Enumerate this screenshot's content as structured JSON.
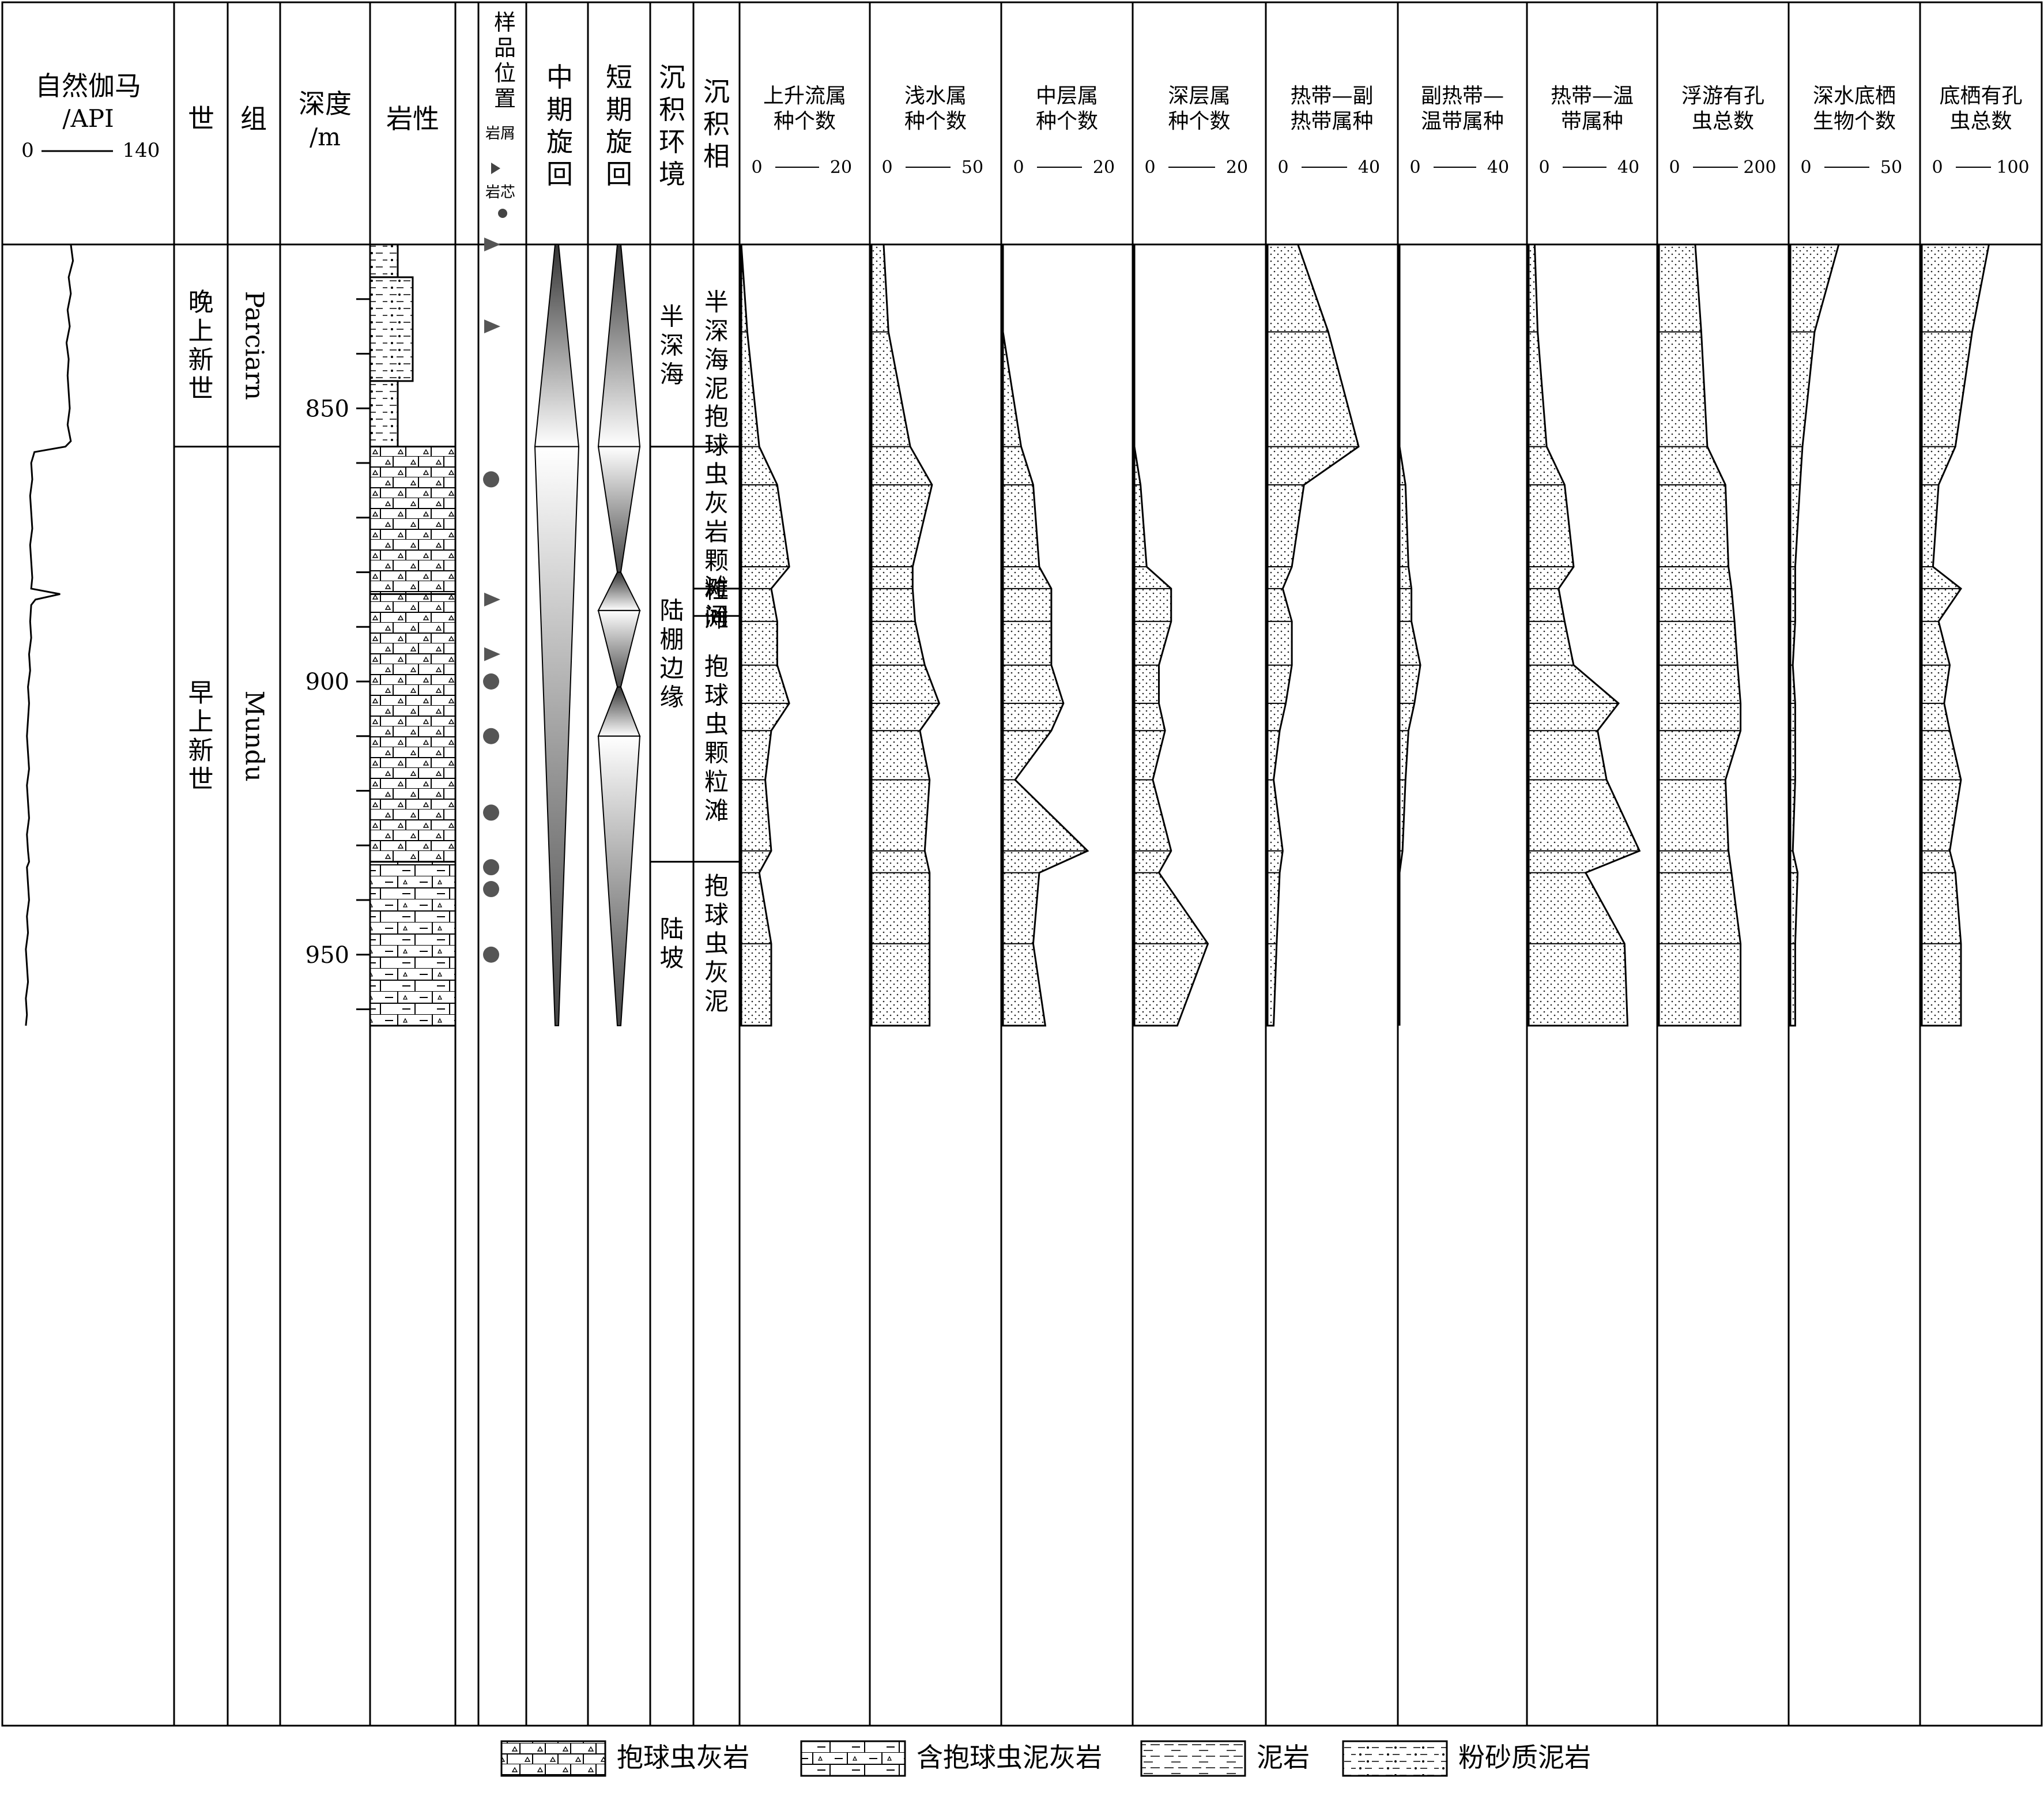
{
  "header": {
    "gamma_title": [
      "自然伽马",
      "/API"
    ],
    "gamma_scale": {
      "min": "0",
      "max": "140"
    },
    "epoch": "世",
    "formation": "组",
    "depth": [
      "深度",
      "/m"
    ],
    "lithology": "岩性",
    "sample": [
      "样",
      "品",
      "位",
      "置"
    ],
    "sample_legend": {
      "cuttings": "岩屑",
      "core": "岩芯"
    },
    "mid_cycle": [
      "中",
      "期",
      "旋",
      "回"
    ],
    "short_cycle": [
      "短",
      "期",
      "旋",
      "回"
    ],
    "environment": [
      "沉",
      "积",
      "环",
      "境"
    ],
    "facies": [
      "沉",
      "积",
      "相"
    ]
  },
  "epochs": [
    {
      "name": [
        "晚",
        "上",
        "新",
        "世"
      ],
      "top": 820,
      "bottom": 857
    },
    {
      "name": [
        "早",
        "上",
        "新",
        "世"
      ],
      "top": 857,
      "bottom": 963
    }
  ],
  "formations": [
    {
      "name": "Parciarn",
      "top": 820,
      "bottom": 857
    },
    {
      "name": "Mundu",
      "top": 857,
      "bottom": 963
    }
  ],
  "environments": [
    {
      "name": [
        "半",
        "深",
        "海"
      ],
      "top": 820,
      "bottom": 857
    },
    {
      "name": [
        "陆",
        "棚",
        "边",
        "缘"
      ],
      "top": 857,
      "bottom": 933
    },
    {
      "name": [
        "陆",
        "坡"
      ],
      "top": 933,
      "bottom": 963
    }
  ],
  "facies": [
    {
      "name": [
        "半",
        "深",
        "海",
        "泥"
      ],
      "top": 820,
      "bottom": 857
    },
    {
      "name": [
        "抱",
        "球",
        "虫",
        "灰",
        "岩",
        "颗",
        "粒",
        "滩"
      ],
      "top": 857,
      "bottom": 883
    },
    {
      "name": [
        "滩",
        "间"
      ],
      "top": 883,
      "bottom": 888
    },
    {
      "name": [
        "抱",
        "球",
        "虫",
        "颗",
        "粒",
        "滩"
      ],
      "top": 888,
      "bottom": 933
    },
    {
      "name": [
        "抱",
        "球",
        "虫",
        "灰",
        "泥"
      ],
      "top": 933,
      "bottom": 963
    }
  ],
  "lithology": [
    {
      "type": "silty",
      "top": 820,
      "bottom": 826
    },
    {
      "type": "silty",
      "top": 826,
      "bottom": 845
    },
    {
      "type": "silty",
      "top": 845,
      "bottom": 857
    },
    {
      "type": "limestone",
      "top": 857,
      "bottom": 884
    },
    {
      "type": "limestone",
      "top": 884,
      "bottom": 933
    },
    {
      "type": "marl",
      "top": 933,
      "bottom": 963
    }
  ],
  "samples": [
    {
      "kind": "cuttings",
      "depth": 820
    },
    {
      "kind": "cuttings",
      "depth": 835
    },
    {
      "kind": "core",
      "depth": 863
    },
    {
      "kind": "cuttings",
      "depth": 885
    },
    {
      "kind": "cuttings",
      "depth": 895
    },
    {
      "kind": "core",
      "depth": 900
    },
    {
      "kind": "core",
      "depth": 910
    },
    {
      "kind": "core",
      "depth": 924
    },
    {
      "kind": "core",
      "depth": 934
    },
    {
      "kind": "core",
      "depth": 938
    },
    {
      "kind": "core",
      "depth": 950
    }
  ],
  "cycles": {
    "mid": [
      [
        820,
        857,
        "down"
      ],
      [
        857,
        963,
        "up"
      ]
    ],
    "short": [
      [
        820,
        857,
        "down"
      ],
      [
        857,
        880,
        "up"
      ],
      [
        880,
        887,
        "down"
      ],
      [
        887,
        901,
        "up"
      ],
      [
        901,
        910,
        "down"
      ],
      [
        910,
        963,
        "up"
      ]
    ]
  },
  "legend": [
    {
      "type": "limestone",
      "label": "抱球虫灰岩"
    },
    {
      "type": "marl",
      "label": "含抱球虫泥灰岩"
    },
    {
      "type": "mudstone",
      "label": "泥岩"
    },
    {
      "type": "silty",
      "label": "粉砂质泥岩"
    }
  ],
  "chart_data": {
    "type": "line",
    "ylabel": "深度/m",
    "ylim": [
      820,
      963
    ],
    "y_ticks": [
      {
        "value": 830,
        "label": ""
      },
      {
        "value": 840,
        "label": ""
      },
      {
        "value": 850,
        "label": "850"
      },
      {
        "value": 860,
        "label": ""
      },
      {
        "value": 870,
        "label": ""
      },
      {
        "value": 880,
        "label": ""
      },
      {
        "value": 890,
        "label": ""
      },
      {
        "value": 900,
        "label": "900"
      },
      {
        "value": 910,
        "label": ""
      },
      {
        "value": 920,
        "label": ""
      },
      {
        "value": 930,
        "label": ""
      },
      {
        "value": 940,
        "label": ""
      },
      {
        "value": 950,
        "label": "950"
      },
      {
        "value": 960,
        "label": ""
      }
    ],
    "gamma_ray": {
      "xlabel": "自然伽马/API",
      "xlim": [
        0,
        140
      ],
      "depth": [
        820,
        823,
        826,
        829,
        832,
        835,
        838,
        841,
        844,
        847,
        850,
        853,
        856,
        857,
        858,
        860,
        863,
        866,
        869,
        872,
        875,
        878,
        881,
        883,
        884,
        885,
        886,
        889,
        892,
        895,
        898,
        901,
        904,
        907,
        910,
        913,
        916,
        919,
        922,
        925,
        928,
        931,
        933,
        934,
        937,
        940,
        943,
        946,
        949,
        952,
        955,
        958,
        961,
        963
      ],
      "value": [
        50,
        52,
        48,
        50,
        47,
        49,
        46,
        48,
        47,
        48,
        49,
        47,
        50,
        45,
        16,
        13,
        14,
        12,
        13,
        14,
        12,
        13,
        14,
        13,
        40,
        17,
        13,
        12,
        13,
        11,
        12,
        10,
        11,
        10,
        9,
        10,
        11,
        9,
        10,
        11,
        9,
        10,
        11,
        9,
        10,
        11,
        9,
        10,
        8,
        9,
        10,
        8,
        9,
        8
      ]
    },
    "boundaries": [
      836,
      857,
      864,
      879,
      883,
      889,
      897,
      904,
      909,
      918,
      931,
      935
    ],
    "categories": [
      820,
      836,
      857,
      864,
      879,
      883,
      889,
      897,
      904,
      909,
      918,
      931,
      935,
      948,
      963
    ],
    "series": [
      {
        "name": "上升流属种个数",
        "xlim": [
          0,
          20
        ],
        "ticks": [
          "0",
          "20"
        ],
        "values": [
          0,
          1,
          3,
          6,
          8,
          5,
          6,
          6,
          8,
          5,
          4,
          5,
          3,
          5,
          5
        ]
      },
      {
        "name": "浅水属种个数",
        "xlim": [
          0,
          50
        ],
        "ticks": [
          "0",
          "50"
        ],
        "values": [
          5,
          7,
          16,
          25,
          17,
          17,
          18,
          22,
          28,
          20,
          24,
          22,
          24,
          24,
          24
        ]
      },
      {
        "name": "中层属种个数",
        "xlim": [
          0,
          20
        ],
        "ticks": [
          "0",
          "20"
        ],
        "values": [
          0,
          0,
          3,
          5,
          6,
          8,
          8,
          8,
          10,
          8,
          2,
          14,
          6,
          5,
          7
        ]
      },
      {
        "name": "深层属种个数",
        "xlim": [
          0,
          20
        ],
        "ticks": [
          "0",
          "20"
        ],
        "values": [
          0,
          0,
          0,
          1,
          2,
          6,
          6,
          4,
          4,
          5,
          3,
          6,
          4,
          12,
          7
        ]
      },
      {
        "name": "热带—副热带属种",
        "xlim": [
          0,
          40
        ],
        "ticks": [
          "0",
          "40"
        ],
        "values": [
          10,
          20,
          30,
          12,
          8,
          5,
          8,
          8,
          6,
          4,
          2,
          5,
          4,
          3,
          2
        ]
      },
      {
        "name": "副热带—温带属种",
        "xlim": [
          0,
          40
        ],
        "ticks": [
          "0",
          "40"
        ],
        "values": [
          0,
          0,
          0,
          2,
          3,
          4,
          4,
          7,
          5,
          3,
          2,
          1,
          0,
          0,
          0
        ]
      },
      {
        "name": "热带—温带属种",
        "xlim": [
          0,
          40
        ],
        "ticks": [
          "0",
          "40"
        ],
        "values": [
          2,
          3,
          6,
          12,
          15,
          10,
          12,
          15,
          30,
          23,
          26,
          37,
          19,
          32,
          33
        ]
      },
      {
        "name": "浮游有孔虫总数",
        "xlim": [
          0,
          200
        ],
        "ticks": [
          "0",
          "200"
        ],
        "values": [
          60,
          70,
          80,
          110,
          115,
          120,
          125,
          130,
          135,
          135,
          110,
          115,
          120,
          135,
          135
        ]
      },
      {
        "name": "深水底栖生物个数",
        "xlim": [
          0,
          50
        ],
        "ticks": [
          "0",
          "50"
        ],
        "values": [
          20,
          10,
          5,
          4,
          2,
          2,
          2,
          1,
          2,
          2,
          2,
          1,
          3,
          2,
          2
        ]
      },
      {
        "name": "底栖有孔虫总数",
        "xlim": [
          0,
          100
        ],
        "ticks": [
          "0",
          "100"
        ],
        "values": [
          60,
          45,
          30,
          15,
          10,
          35,
          15,
          25,
          20,
          25,
          35,
          25,
          30,
          35,
          35
        ]
      }
    ]
  }
}
